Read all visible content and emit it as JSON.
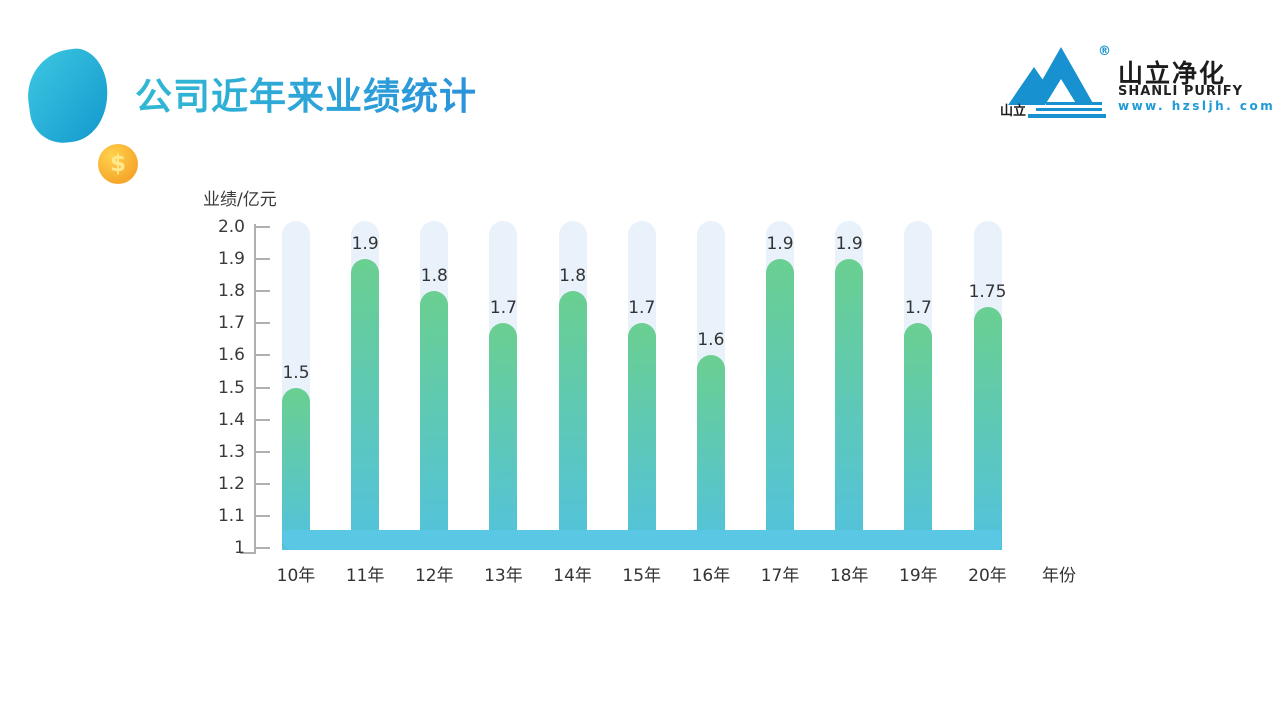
{
  "header": {
    "title": "公司近年来业绩统计",
    "coin_symbol": "$"
  },
  "logo": {
    "mark_text": "山立",
    "registered_mark": "®",
    "name_cn": "山立净化",
    "name_en": "SHANLI PURIFY",
    "website": "www. hzsljh. com"
  },
  "chart_data": {
    "type": "bar",
    "title": "公司近年来业绩统计",
    "ylabel": "业绩/亿元",
    "xlabel": "年份",
    "categories": [
      "10年",
      "11年",
      "12年",
      "13年",
      "14年",
      "15年",
      "16年",
      "17年",
      "18年",
      "19年",
      "20年"
    ],
    "values": [
      1.5,
      1.9,
      1.8,
      1.7,
      1.8,
      1.7,
      1.6,
      1.9,
      1.9,
      1.7,
      1.75
    ],
    "value_labels": [
      "1.5",
      "1.9",
      "1.8",
      "1.7",
      "1.8",
      "1.7",
      "1.6",
      "1.9",
      "1.9",
      "1.7",
      "1.75"
    ],
    "ylim": [
      1,
      2
    ],
    "yticks": [
      2.0,
      1.9,
      1.8,
      1.7,
      1.6,
      1.5,
      1.4,
      1.3,
      1.2,
      1.1,
      1
    ],
    "ytick_labels": [
      "2.0",
      "1.9",
      "1.8",
      "1.7",
      "1.6",
      "1.5",
      "1.4",
      "1.3",
      "1.2",
      "1.1",
      "1"
    ],
    "grid": false,
    "legend": false,
    "colors": {
      "bar_gradient_top": "#6acf90",
      "bar_gradient_bottom": "#52c2de",
      "track": "#e9f1fb",
      "baseline": "#5ac8e5",
      "axis": "#b0b0b0",
      "label": "#3a3a3a"
    }
  }
}
